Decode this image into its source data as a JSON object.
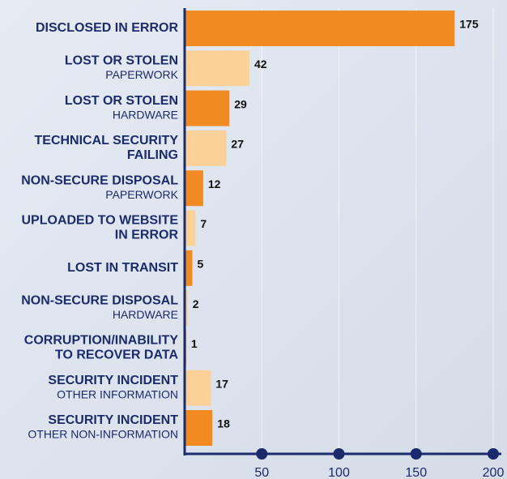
{
  "chart_data": {
    "type": "hbar",
    "categories": [
      {
        "lines": [
          "DISCLOSED IN ERROR"
        ]
      },
      {
        "lines": [
          "LOST OR STOLEN"
        ],
        "sub": "PAPERWORK"
      },
      {
        "lines": [
          "LOST OR STOLEN"
        ],
        "sub": "HARDWARE"
      },
      {
        "lines": [
          "TECHNICAL SECURITY",
          "FAILING"
        ]
      },
      {
        "lines": [
          "NON-SECURE DISPOSAL"
        ],
        "sub": "PAPERWORK"
      },
      {
        "lines": [
          "UPLOADED TO WEBSITE",
          "IN ERROR"
        ]
      },
      {
        "lines": [
          "LOST IN TRANSIT"
        ]
      },
      {
        "lines": [
          "NON-SECURE DISPOSAL"
        ],
        "sub": "HARDWARE"
      },
      {
        "lines": [
          "CORRUPTION/INABILITY",
          "TO RECOVER DATA"
        ]
      },
      {
        "lines": [
          "SECURITY INCIDENT"
        ],
        "sub": "OTHER INFORMATION"
      },
      {
        "lines": [
          "SECURITY INCIDENT"
        ],
        "sub": "OTHER NON-INFORMATION"
      }
    ],
    "values": [
      175,
      42,
      29,
      27,
      12,
      7,
      5,
      2,
      1,
      17,
      18
    ],
    "colors": [
      "#f28a22",
      "#fbd199",
      "#f28a22",
      "#fbd199",
      "#f28a22",
      "#fbd199",
      "#f28a22",
      "#fbd199",
      "#f28a22",
      "#fbd199",
      "#f28a22"
    ],
    "xlim": [
      0,
      200
    ],
    "xticks": [
      50,
      100,
      150,
      200
    ],
    "grid": true
  }
}
